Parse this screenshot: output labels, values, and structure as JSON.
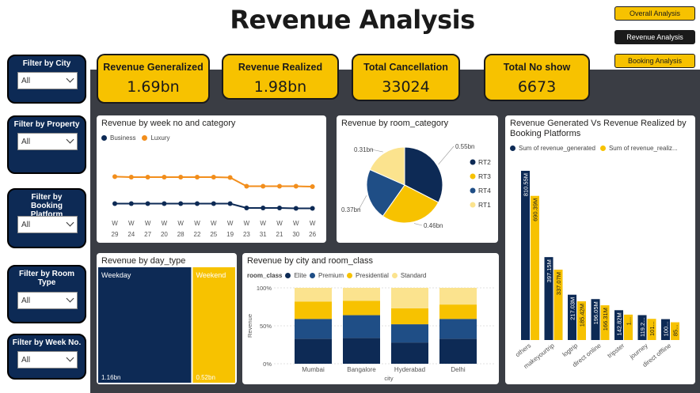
{
  "title": "Revenue Analysis",
  "nav": {
    "overall": "Overall Analysis",
    "revenue": "Revenue Analysis",
    "booking": "Booking Analysis"
  },
  "filters": {
    "city": {
      "label": "Filter by City",
      "value": "All"
    },
    "property": {
      "label": "Filter by Property",
      "value": "All"
    },
    "platform": {
      "label": "Filter by Booking Platform",
      "value": "All"
    },
    "room": {
      "label": "Filter by Room Type",
      "value": "All"
    },
    "week": {
      "label": "Filter by Week No.",
      "value": "All"
    }
  },
  "kpis": {
    "generated": {
      "label": "Revenue Generalized",
      "value": "1.69bn"
    },
    "realized": {
      "label": "Revenue Realized",
      "value": "1.98bn"
    },
    "cancellation": {
      "label": "Total Cancellation",
      "value": "33024"
    },
    "noshow": {
      "label": "Total No show",
      "value": "6673"
    }
  },
  "colors": {
    "navy": "#0d2a55",
    "yellow": "#f7c200",
    "orange": "#f28e1c",
    "lightyellow": "#fbe38e",
    "steel": "#1f4e86",
    "board": "#3a3d44"
  },
  "week_chart": {
    "title": "Revenue by week no and category",
    "chart_data": {
      "type": "line",
      "categories": [
        "W 29",
        "W 24",
        "W 27",
        "W 20",
        "W 28",
        "W 22",
        "W 25",
        "W 19",
        "W 23",
        "W 31",
        "W 21",
        "W 30",
        "W 26"
      ],
      "series": [
        {
          "name": "Business",
          "values": [
            0.35,
            0.35,
            0.35,
            0.35,
            0.35,
            0.35,
            0.35,
            0.35,
            0.3,
            0.3,
            0.3,
            0.295,
            0.295
          ]
        },
        {
          "name": "Luxury",
          "values": [
            0.66,
            0.655,
            0.655,
            0.655,
            0.655,
            0.655,
            0.655,
            0.65,
            0.55,
            0.55,
            0.55,
            0.55,
            0.545
          ]
        }
      ],
      "ylim": [
        0,
        1
      ]
    }
  },
  "pie_chart": {
    "title": "Revenue by room_category",
    "chart_data": {
      "type": "pie",
      "slices": [
        {
          "name": "RT2",
          "label": "0.55bn",
          "value": 0.55
        },
        {
          "name": "RT3",
          "label": "0.46bn",
          "value": 0.46
        },
        {
          "name": "RT4",
          "label": "0.37bn",
          "value": 0.37
        },
        {
          "name": "RT1",
          "label": "0.31bn",
          "value": 0.31
        }
      ]
    }
  },
  "platform_chart": {
    "title": "Revenue Generated Vs Revenue Realized by Booking Platforms",
    "legend_generated": "Sum of revenue_generated",
    "legend_realized": "Sum of revenue_realiz...",
    "chart_data": {
      "type": "bar",
      "categories": [
        "others",
        "makeyourtrip",
        "logtrip",
        "direct online",
        "tripster",
        "journey",
        "direct offline"
      ],
      "series": [
        {
          "name": "Sum of revenue_generated",
          "values": [
            810.55,
            397.15,
            217.03,
            196.05,
            142.82,
            119.2,
            100
          ],
          "labels": [
            "810.55M",
            "397.15M",
            "217.03M",
            "196.05M",
            "142.82M",
            "119.2...",
            "100..."
          ]
        },
        {
          "name": "Sum of revenue_realized",
          "values": [
            690.39,
            337.07,
            185.42,
            166.31,
            121.6,
            101.4,
            85
          ],
          "labels": [
            "690.39M",
            "337.07M",
            "185.42M",
            "166.31M",
            "1...",
            "101...",
            "85..."
          ]
        }
      ]
    }
  },
  "daytype_chart": {
    "title": "Revenue by day_type",
    "chart_data": {
      "type": "bar",
      "categories": [
        "Weekday",
        "Weekend"
      ],
      "values": [
        1.16,
        0.52
      ],
      "labels": [
        "1.16bn",
        "0.52bn"
      ]
    }
  },
  "city_chart": {
    "title": "Revenue by city and room_class",
    "legend_title": "room_class",
    "xlabel": "city",
    "ylabel": "Revenue",
    "chart_data": {
      "type": "bar",
      "categories": [
        "Mumbai",
        "Bangalore",
        "Hyderabad",
        "Delhi"
      ],
      "yticks": [
        "100%",
        "50%",
        "0%"
      ],
      "series": [
        {
          "name": "Elite",
          "values": [
            33,
            34,
            28,
            33
          ]
        },
        {
          "name": "Premium",
          "values": [
            26,
            30,
            24,
            26
          ]
        },
        {
          "name": "Presidential",
          "values": [
            23,
            19,
            21,
            19
          ]
        },
        {
          "name": "Standard",
          "values": [
            18,
            17,
            27,
            22
          ]
        }
      ]
    }
  }
}
